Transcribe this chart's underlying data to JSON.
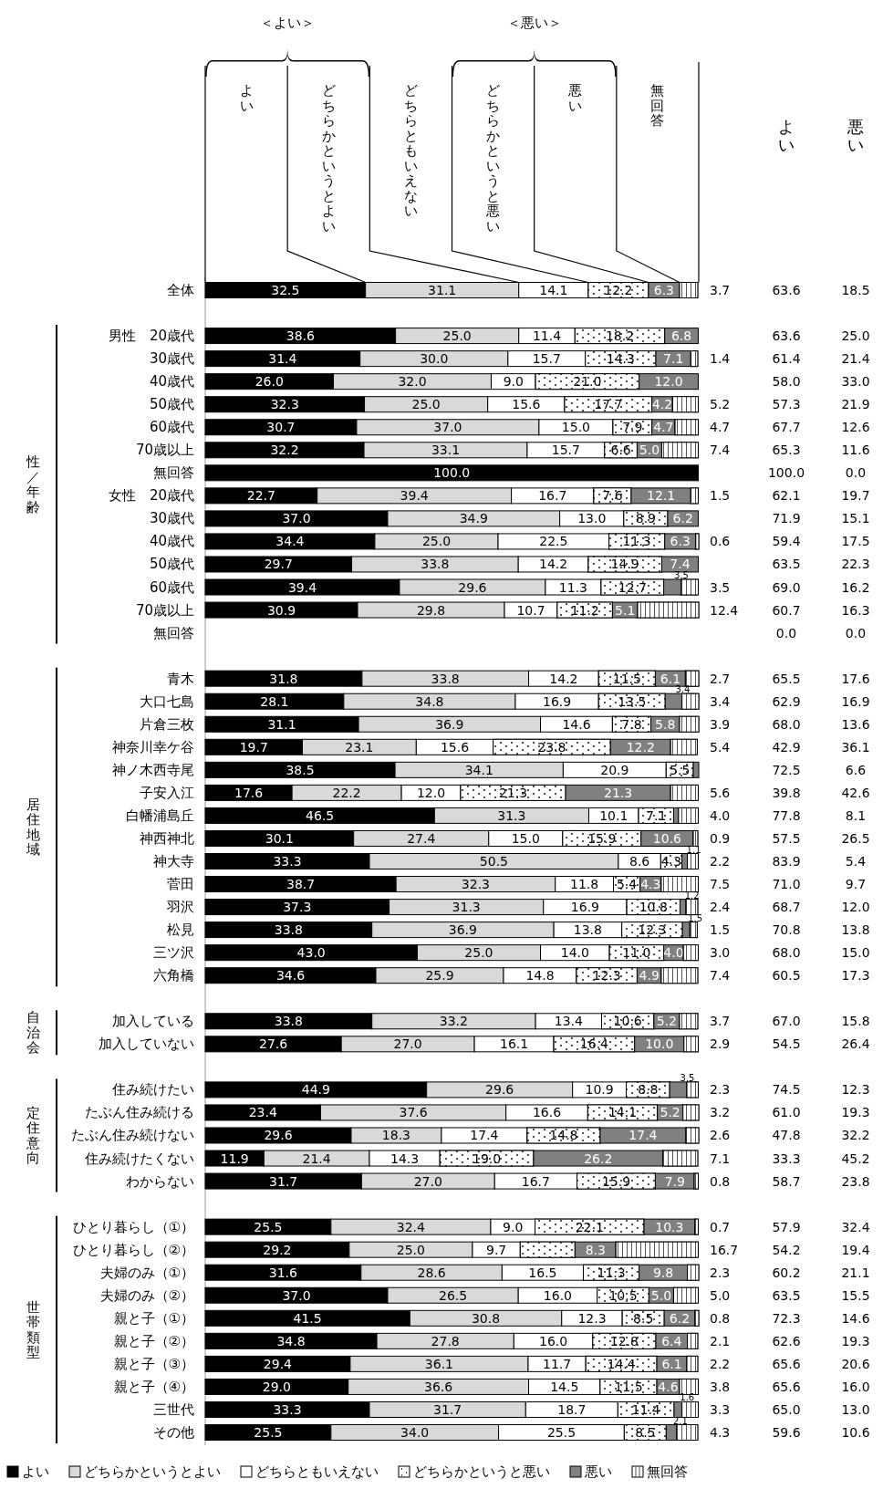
{
  "chart_data": [
    {
      "type": "bar",
      "orientation": "horizontal",
      "stacked": true,
      "legend": "bottom",
      "annotations": [
        "＜よい＞",
        "＜悪い＞",
        "よい",
        "どちらかというとよい",
        "どちらともいえない",
        "どちらかというと悪い",
        "悪い",
        "無回答",
        "性／年齢",
        "居住地域",
        "自治会",
        "定住意向",
        "世帯類型"
      ],
      "categories": [
        "全体",
        null,
        "男性　20歳代",
        "30歳代",
        "40歳代",
        "50歳代",
        "60歳代",
        "70歳以上",
        "無回答",
        "女性　20歳代",
        "30歳代",
        "40歳代",
        "50歳代",
        "60歳代",
        "70歳以上",
        "無回答",
        null,
        "青木",
        "大口七島",
        "片倉三枚",
        "神奈川幸ケ谷",
        "神ノ木西寺尾",
        "子安入江",
        "白幡浦島丘",
        "神西神北",
        "神大寺",
        "菅田",
        "羽沢",
        "松見",
        "三ツ沢",
        "六角橋",
        null,
        "加入している",
        "加入していない",
        null,
        "住み続けたい",
        "たぶん住み続ける",
        "たぶん住み続けない",
        "住み続けたくない",
        "わからない",
        null,
        "ひとり暮らし（①）",
        "ひとり暮らし（②）",
        "夫婦のみ（①）",
        "夫婦のみ（②）",
        "親と子（①）",
        "親と子（②）",
        "親と子（③）",
        "親と子（④）",
        "三世代",
        "その他"
      ],
      "series": [
        {
          "name": "よい",
          "color": "#000000",
          "values": [
            32.5,
            null,
            38.6,
            31.4,
            26.0,
            32.3,
            30.7,
            32.2,
            100.0,
            22.7,
            37.0,
            34.4,
            29.7,
            39.4,
            30.9,
            null,
            null,
            31.8,
            28.1,
            31.1,
            19.7,
            38.5,
            17.6,
            46.5,
            30.1,
            33.3,
            38.7,
            37.3,
            33.8,
            43.0,
            34.6,
            null,
            33.8,
            27.6,
            null,
            44.9,
            23.4,
            29.6,
            11.9,
            31.7,
            null,
            25.5,
            29.2,
            31.6,
            37.0,
            41.5,
            34.8,
            29.4,
            29.0,
            33.3,
            25.5
          ],
          "value_labels": [
            "32.5",
            null,
            "38.6",
            "31.4",
            "26.0",
            "32.3",
            "30.7",
            "32.2",
            "100.0",
            "22.7",
            "37.0",
            "34.4",
            "29.7",
            "39.4",
            "30.9",
            null,
            null,
            "31.8",
            "28.1",
            "31.1",
            "19.7",
            "38.5",
            "17.6",
            "46.5",
            "30.1",
            "33.3",
            "38.7",
            "37.3",
            "33.8",
            "43.0",
            "34.6",
            null,
            "33.8",
            "27.6",
            null,
            "44.9",
            "23.4",
            "29.6",
            "11.9",
            "31.7",
            null,
            "25.5",
            "29.2",
            "31.6",
            "37.0",
            "41.5",
            "34.8",
            "29.4",
            "29.0",
            "33.3",
            "25.5"
          ]
        },
        {
          "name": "どちらかというとよい",
          "color": "#d9d9d9",
          "values": [
            31.1,
            null,
            25.0,
            30.0,
            32.0,
            25.0,
            37.0,
            33.1,
            null,
            39.4,
            34.9,
            25.0,
            33.8,
            29.6,
            29.8,
            null,
            null,
            33.8,
            34.8,
            36.9,
            23.1,
            34.1,
            22.2,
            31.3,
            27.4,
            50.5,
            32.3,
            31.3,
            36.9,
            25.0,
            25.9,
            null,
            33.2,
            27.0,
            null,
            29.6,
            37.6,
            18.3,
            21.4,
            27.0,
            null,
            32.4,
            25.0,
            28.6,
            26.5,
            30.8,
            27.8,
            36.1,
            36.6,
            31.7,
            34.0
          ],
          "value_labels": [
            "31.1",
            null,
            "25.0",
            "30.0",
            "32.0",
            "25.0",
            "37.0",
            "33.1",
            null,
            "39.4",
            "34.9",
            "25.0",
            "33.8",
            "29.6",
            "29.8",
            null,
            null,
            "33.8",
            "34.8",
            "36.9",
            "23.1",
            "34.1",
            "22.2",
            "31.3",
            "27.4",
            "50.5",
            "32.3",
            "31.3",
            "36.9",
            "25.0",
            "25.9",
            null,
            "33.2",
            "27.0",
            null,
            "29.6",
            "37.6",
            "18.3",
            "21.4",
            "27.0",
            null,
            "32.4",
            "25.0",
            "28.6",
            "26.5",
            "30.8",
            "27.8",
            "36.1",
            "36.6",
            "31.7",
            "34.0"
          ]
        },
        {
          "name": "どちらともいえない",
          "color": "#ffffff",
          "values": [
            14.1,
            null,
            11.4,
            15.7,
            9.0,
            15.6,
            15.0,
            15.7,
            null,
            16.7,
            13.0,
            22.5,
            14.2,
            11.3,
            10.7,
            null,
            null,
            14.2,
            16.9,
            14.6,
            15.6,
            20.9,
            12.0,
            10.1,
            15.0,
            8.6,
            11.8,
            16.9,
            13.8,
            14.0,
            14.8,
            null,
            13.4,
            16.1,
            null,
            10.9,
            16.6,
            17.4,
            14.3,
            16.7,
            null,
            9.0,
            9.7,
            16.5,
            16.0,
            12.3,
            16.0,
            11.7,
            14.5,
            18.7,
            25.5
          ],
          "value_labels": [
            "14.1",
            null,
            "11.4",
            "15.7",
            "9.0",
            "15.6",
            "15.0",
            "15.7",
            null,
            "16.7",
            "13.0",
            "22.5",
            "14.2",
            "11.3",
            "10.7",
            null,
            null,
            "14.2",
            "16.9",
            "14.6",
            "15.6",
            "20.9",
            "12.0",
            "10.1",
            "15.0",
            "8.6",
            "11.8",
            "16.9",
            "13.8",
            "14.0",
            "14.8",
            null,
            "13.4",
            "16.1",
            null,
            "10.9",
            "16.6",
            "17.4",
            "14.3",
            "16.7",
            null,
            "9.0",
            "9.7",
            "16.5",
            "16.0",
            "12.3",
            "16.0",
            "11.7",
            "14.5",
            "18.7",
            "25.5"
          ]
        },
        {
          "name": "どちらかというと悪い",
          "color": "#ffffff",
          "values": [
            12.2,
            null,
            18.2,
            14.3,
            21.0,
            17.7,
            7.9,
            6.6,
            null,
            7.6,
            8.9,
            11.3,
            14.9,
            12.7,
            11.2,
            null,
            null,
            11.5,
            13.5,
            7.8,
            23.8,
            5.5,
            21.3,
            7.1,
            15.9,
            4.3,
            5.4,
            10.8,
            12.3,
            11.0,
            12.3,
            null,
            10.6,
            16.4,
            null,
            8.8,
            14.1,
            14.8,
            19.0,
            15.9,
            null,
            22.1,
            11.1,
            11.3,
            10.5,
            8.5,
            12.8,
            14.4,
            11.5,
            11.4,
            8.5
          ],
          "value_labels": [
            "12.2",
            null,
            "18.2",
            "14.3",
            "21.0",
            "17.7",
            "7.9",
            "6.6",
            null,
            "7.6",
            "8.9",
            "11.3",
            "14.9",
            "12.7",
            "11.2",
            null,
            null,
            "11.5",
            "13.5",
            "7.8",
            "23.8",
            "5.5",
            "21.3",
            "7.1",
            "15.9",
            "4.3",
            "5.4",
            "10.8",
            "12.3",
            "11.0",
            "12.3",
            null,
            "10.6",
            "16.4",
            null,
            "8.8",
            "14.1",
            "14.8",
            "19.0",
            "15.9",
            null,
            "22.1",
            null,
            "11.3",
            "10.5",
            "8.5",
            "12.8",
            "14.4",
            "11.5",
            "11.4",
            "8.5"
          ]
        },
        {
          "name": "悪い",
          "color": "#808080",
          "values": [
            6.3,
            null,
            6.8,
            7.1,
            12.0,
            4.2,
            4.7,
            5.0,
            null,
            12.1,
            6.2,
            6.3,
            7.4,
            3.5,
            5.1,
            null,
            null,
            6.1,
            3.4,
            5.8,
            12.2,
            1.1,
            21.3,
            1.0,
            10.6,
            1.1,
            4.3,
            1.2,
            1.5,
            4.0,
            4.9,
            null,
            5.2,
            10.0,
            null,
            3.5,
            5.2,
            17.4,
            26.2,
            7.9,
            null,
            10.3,
            8.3,
            9.8,
            5.0,
            6.2,
            6.4,
            6.1,
            4.6,
            1.6,
            2.1
          ],
          "value_labels": [
            "6.3",
            null,
            "6.8",
            "7.1",
            "12.0",
            "4.2",
            "4.7",
            "5.0",
            null,
            "12.1",
            "6.2",
            "6.3",
            "7.4",
            "3.5",
            "5.1",
            null,
            null,
            "6.1",
            "3.4",
            "5.8",
            "12.2",
            null,
            "21.3",
            null,
            "10.6",
            "1.1",
            "4.3",
            "1.2",
            "1.5",
            "4.0",
            "4.9",
            null,
            "5.2",
            "10.0",
            null,
            "3.5",
            "5.2",
            "17.4",
            "26.2",
            "7.9",
            null,
            "10.3",
            "8.3",
            "9.8",
            "5.0",
            "6.2",
            "6.4",
            "6.1",
            "4.6",
            "1.6",
            "2.1"
          ]
        },
        {
          "name": "無回答",
          "color": "#ffffff",
          "values": [
            3.7,
            null,
            null,
            1.4,
            null,
            5.2,
            4.7,
            7.4,
            null,
            1.5,
            null,
            0.6,
            null,
            3.5,
            12.4,
            null,
            null,
            2.7,
            3.4,
            3.9,
            5.4,
            null,
            5.6,
            4.0,
            0.9,
            2.2,
            7.5,
            2.4,
            1.5,
            3.0,
            7.4,
            null,
            3.7,
            2.9,
            null,
            2.3,
            3.2,
            2.6,
            7.1,
            0.8,
            null,
            0.7,
            16.7,
            2.3,
            5.0,
            0.8,
            2.1,
            2.2,
            3.8,
            3.3,
            4.3
          ],
          "value_labels": [
            "3.7",
            null,
            null,
            "1.4",
            null,
            "5.2",
            "4.7",
            "7.4",
            null,
            "1.5",
            null,
            "0.6",
            null,
            "3.5",
            "12.4",
            null,
            null,
            "2.7",
            "3.4",
            "3.9",
            "5.4",
            null,
            "5.6",
            "4.0",
            "0.9",
            "2.2",
            "7.5",
            "2.4",
            "1.5",
            "3.0",
            "7.4",
            null,
            "3.7",
            "2.9",
            null,
            "2.3",
            "3.2",
            "2.6",
            "7.1",
            "0.8",
            null,
            "0.7",
            "16.7",
            "2.3",
            "5.0",
            "0.8",
            "2.1",
            "2.2",
            "3.8",
            "3.3",
            "4.3"
          ]
        }
      ]
    },
    {
      "type": "other",
      "categories": [
        "よい",
        "悪い"
      ],
      "cell_labels": [
        [
          "63.6",
          "18.5"
        ],
        null,
        [
          "63.6",
          "25.0"
        ],
        [
          "61.4",
          "21.4"
        ],
        [
          "58.0",
          "33.0"
        ],
        [
          "57.3",
          "21.9"
        ],
        [
          "67.7",
          "12.6"
        ],
        [
          "65.3",
          "11.6"
        ],
        [
          "100.0",
          "0.0"
        ],
        [
          "62.1",
          "19.7"
        ],
        [
          "71.9",
          "15.1"
        ],
        [
          "59.4",
          "17.5"
        ],
        [
          "63.5",
          "22.3"
        ],
        [
          "69.0",
          "16.2"
        ],
        [
          "60.7",
          "16.3"
        ],
        [
          "0.0",
          "0.0"
        ],
        null,
        [
          "65.5",
          "17.6"
        ],
        [
          "62.9",
          "16.9"
        ],
        [
          "68.0",
          "13.6"
        ],
        [
          "42.9",
          "36.1"
        ],
        [
          "72.5",
          "6.6"
        ],
        [
          "39.8",
          "42.6"
        ],
        [
          "77.8",
          "8.1"
        ],
        [
          "57.5",
          "26.5"
        ],
        [
          "83.9",
          "5.4"
        ],
        [
          "71.0",
          "9.7"
        ],
        [
          "68.7",
          "12.0"
        ],
        [
          "70.8",
          "13.8"
        ],
        [
          "68.0",
          "15.0"
        ],
        [
          "60.5",
          "17.3"
        ],
        null,
        [
          "67.0",
          "15.8"
        ],
        [
          "54.5",
          "26.4"
        ],
        null,
        [
          "74.5",
          "12.3"
        ],
        [
          "61.0",
          "19.3"
        ],
        [
          "47.8",
          "32.2"
        ],
        [
          "33.3",
          "45.2"
        ],
        [
          "58.7",
          "23.8"
        ],
        null,
        [
          "57.9",
          "32.4"
        ],
        [
          "54.2",
          "19.4"
        ],
        [
          "60.2",
          "21.1"
        ],
        [
          "63.5",
          "15.5"
        ],
        [
          "72.3",
          "14.6"
        ],
        [
          "62.6",
          "19.3"
        ],
        [
          "65.6",
          "20.6"
        ],
        [
          "65.6",
          "16.0"
        ],
        [
          "65.0",
          "13.0"
        ],
        [
          "59.6",
          "10.6"
        ]
      ]
    }
  ]
}
